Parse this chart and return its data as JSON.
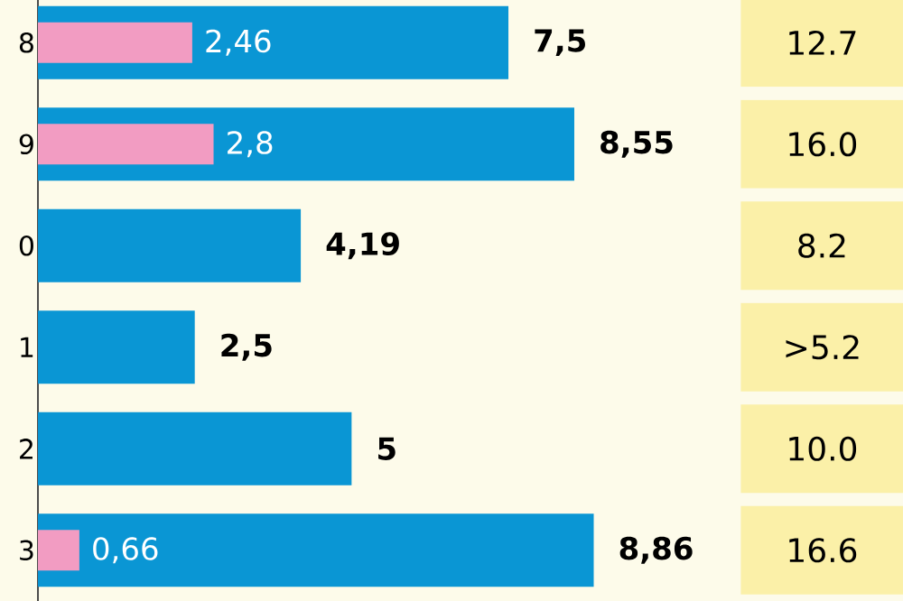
{
  "chart_data": {
    "type": "bar",
    "orientation": "horizontal",
    "categories": [
      "8",
      "9",
      "0",
      "1",
      "2",
      "3"
    ],
    "tick_labels": "y",
    "series": [
      {
        "color": "#0a96d4",
        "values": [
          7.5,
          8.55,
          4.19,
          2.5,
          5,
          8.86
        ],
        "value_labels": [
          "7,5",
          "8,55",
          "4,19",
          "2,5",
          "5",
          "8,86"
        ]
      },
      {
        "color": "#f29cc2",
        "values": [
          2.46,
          2.8,
          null,
          null,
          null,
          0.66
        ],
        "value_labels": [
          "2,46",
          "2,8",
          null,
          null,
          null,
          "0,66"
        ]
      }
    ],
    "annotations": [
      "12.7",
      "16.0",
      "8.2",
      ">5.2",
      "10.0",
      "16.6"
    ]
  }
}
